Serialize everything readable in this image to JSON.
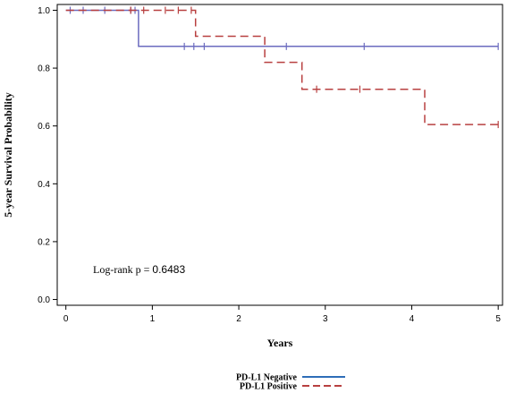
{
  "chart_data": {
    "type": "line",
    "subtype": "kaplan-meier",
    "title": "",
    "xlabel": "Years",
    "ylabel": "5-year Survival Probability",
    "xlim": [
      -0.1,
      5.05
    ],
    "ylim": [
      -0.02,
      1.02
    ],
    "xticks": [
      0,
      1,
      2,
      3,
      4,
      5
    ],
    "xtick_labels": [
      "0",
      "1",
      "2",
      "3",
      "4",
      "5"
    ],
    "yticks": [
      0.0,
      0.2,
      0.4,
      0.6,
      0.8,
      1.0
    ],
    "ytick_labels": [
      "0.0",
      "0.2",
      "0.4",
      "0.6",
      "0.8",
      "1.0"
    ],
    "grid": false,
    "legend_position": "bottom",
    "annotation": {
      "prefix": "Log-rank p = ",
      "value": "0.6483"
    },
    "series": [
      {
        "name": "PD-L1 Negative",
        "color": "#6b6bbf",
        "legend_color": "#2e6db8",
        "style": "solid",
        "steps": [
          [
            0,
            1.0
          ],
          [
            0.84,
            1.0
          ],
          [
            0.84,
            0.875
          ],
          [
            5.0,
            0.875
          ]
        ],
        "censors": [
          [
            0.05,
            1.0
          ],
          [
            0.2,
            1.0
          ],
          [
            0.45,
            1.0
          ],
          [
            0.75,
            1.0
          ],
          [
            0.8,
            1.0
          ],
          [
            1.37,
            0.875
          ],
          [
            1.48,
            0.875
          ],
          [
            1.6,
            0.875
          ],
          [
            2.55,
            0.875
          ],
          [
            3.45,
            0.875
          ],
          [
            5.0,
            0.875
          ]
        ]
      },
      {
        "name": "PD-L1 Positive",
        "color": "#b84040",
        "legend_color": "#b84040",
        "style": "dashed",
        "steps": [
          [
            0,
            1.0
          ],
          [
            1.5,
            1.0
          ],
          [
            1.5,
            0.91
          ],
          [
            2.3,
            0.91
          ],
          [
            2.3,
            0.82
          ],
          [
            2.73,
            0.82
          ],
          [
            2.73,
            0.727
          ],
          [
            4.15,
            0.727
          ],
          [
            4.15,
            0.605
          ],
          [
            5.0,
            0.605
          ]
        ],
        "censors": [
          [
            0.75,
            1.0
          ],
          [
            0.9,
            1.0
          ],
          [
            1.15,
            1.0
          ],
          [
            1.3,
            1.0
          ],
          [
            1.45,
            1.0
          ],
          [
            2.9,
            0.727
          ],
          [
            3.4,
            0.727
          ],
          [
            5.0,
            0.605
          ]
        ]
      }
    ]
  }
}
